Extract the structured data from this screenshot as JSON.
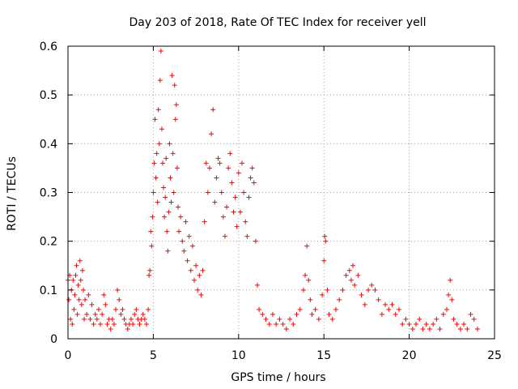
{
  "chart_data": {
    "type": "scatter",
    "title": "Day 203 of 2018, Rate Of TEC Index for receiver yell",
    "xlabel": "GPS time / hours",
    "ylabel": "ROTI / TECUs",
    "xlim": [
      0,
      25
    ],
    "ylim": [
      0,
      0.6
    ],
    "xticks": [
      "0",
      "5",
      "10",
      "15",
      "20",
      "25"
    ],
    "yticks": [
      "0",
      "0.1",
      "0.2",
      "0.3",
      "0.4",
      "0.5",
      "0.6"
    ],
    "grid": true,
    "marker": "+",
    "color": "#ff0000",
    "series": [
      {
        "name": "ROTI",
        "points": [
          [
            0.0,
            0.12
          ],
          [
            0.05,
            0.08
          ],
          [
            0.1,
            0.13
          ],
          [
            0.15,
            0.04
          ],
          [
            0.2,
            0.1
          ],
          [
            0.25,
            0.03
          ],
          [
            0.3,
            0.12
          ],
          [
            0.35,
            0.06
          ],
          [
            0.4,
            0.09
          ],
          [
            0.45,
            0.13
          ],
          [
            0.5,
            0.15
          ],
          [
            0.55,
            0.05
          ],
          [
            0.6,
            0.11
          ],
          [
            0.65,
            0.08
          ],
          [
            0.7,
            0.16
          ],
          [
            0.75,
            0.12
          ],
          [
            0.8,
            0.07
          ],
          [
            0.85,
            0.14
          ],
          [
            0.9,
            0.1
          ],
          [
            0.95,
            0.04
          ],
          [
            1.0,
            0.08
          ],
          [
            1.1,
            0.05
          ],
          [
            1.2,
            0.09
          ],
          [
            1.3,
            0.04
          ],
          [
            1.4,
            0.07
          ],
          [
            1.5,
            0.03
          ],
          [
            1.6,
            0.05
          ],
          [
            1.7,
            0.04
          ],
          [
            1.8,
            0.06
          ],
          [
            1.9,
            0.03
          ],
          [
            2.0,
            0.05
          ],
          [
            2.1,
            0.09
          ],
          [
            2.2,
            0.07
          ],
          [
            2.3,
            0.03
          ],
          [
            2.4,
            0.04
          ],
          [
            2.5,
            0.02
          ],
          [
            2.6,
            0.04
          ],
          [
            2.7,
            0.03
          ],
          [
            2.8,
            0.06
          ],
          [
            2.9,
            0.1
          ],
          [
            3.0,
            0.08
          ],
          [
            3.1,
            0.05
          ],
          [
            3.2,
            0.06
          ],
          [
            3.3,
            0.04
          ],
          [
            3.4,
            0.03
          ],
          [
            3.5,
            0.02
          ],
          [
            3.6,
            0.03
          ],
          [
            3.7,
            0.04
          ],
          [
            3.8,
            0.03
          ],
          [
            3.9,
            0.05
          ],
          [
            4.0,
            0.06
          ],
          [
            4.1,
            0.04
          ],
          [
            4.2,
            0.03
          ],
          [
            4.3,
            0.04
          ],
          [
            4.4,
            0.05
          ],
          [
            4.5,
            0.04
          ],
          [
            4.6,
            0.03
          ],
          [
            4.7,
            0.06
          ],
          [
            4.75,
            0.13
          ],
          [
            4.8,
            0.14
          ],
          [
            4.85,
            0.22
          ],
          [
            4.9,
            0.19
          ],
          [
            4.95,
            0.25
          ],
          [
            5.0,
            0.3
          ],
          [
            5.05,
            0.36
          ],
          [
            5.1,
            0.45
          ],
          [
            5.15,
            0.33
          ],
          [
            5.2,
            0.38
          ],
          [
            5.25,
            0.28
          ],
          [
            5.3,
            0.47
          ],
          [
            5.35,
            0.4
          ],
          [
            5.4,
            0.53
          ],
          [
            5.45,
            0.59
          ],
          [
            5.5,
            0.43
          ],
          [
            5.55,
            0.36
          ],
          [
            5.6,
            0.31
          ],
          [
            5.65,
            0.25
          ],
          [
            5.7,
            0.29
          ],
          [
            5.75,
            0.37
          ],
          [
            5.8,
            0.22
          ],
          [
            5.85,
            0.18
          ],
          [
            5.9,
            0.26
          ],
          [
            5.95,
            0.4
          ],
          [
            6.0,
            0.33
          ],
          [
            6.05,
            0.28
          ],
          [
            6.1,
            0.54
          ],
          [
            6.15,
            0.38
          ],
          [
            6.2,
            0.3
          ],
          [
            6.25,
            0.52
          ],
          [
            6.3,
            0.45
          ],
          [
            6.35,
            0.48
          ],
          [
            6.4,
            0.35
          ],
          [
            6.45,
            0.27
          ],
          [
            6.5,
            0.22
          ],
          [
            6.6,
            0.25
          ],
          [
            6.7,
            0.2
          ],
          [
            6.8,
            0.18
          ],
          [
            6.9,
            0.24
          ],
          [
            7.0,
            0.16
          ],
          [
            7.1,
            0.21
          ],
          [
            7.2,
            0.14
          ],
          [
            7.3,
            0.19
          ],
          [
            7.4,
            0.12
          ],
          [
            7.5,
            0.15
          ],
          [
            7.6,
            0.1
          ],
          [
            7.7,
            0.13
          ],
          [
            7.8,
            0.09
          ],
          [
            7.9,
            0.14
          ],
          [
            8.0,
            0.24
          ],
          [
            8.1,
            0.36
          ],
          [
            8.2,
            0.3
          ],
          [
            8.3,
            0.35
          ],
          [
            8.4,
            0.42
          ],
          [
            8.5,
            0.47
          ],
          [
            8.6,
            0.28
          ],
          [
            8.7,
            0.33
          ],
          [
            8.8,
            0.37
          ],
          [
            8.9,
            0.36
          ],
          [
            9.0,
            0.3
          ],
          [
            9.1,
            0.25
          ],
          [
            9.2,
            0.21
          ],
          [
            9.3,
            0.27
          ],
          [
            9.4,
            0.35
          ],
          [
            9.5,
            0.38
          ],
          [
            9.6,
            0.32
          ],
          [
            9.7,
            0.26
          ],
          [
            9.8,
            0.29
          ],
          [
            9.9,
            0.23
          ],
          [
            10.0,
            0.34
          ],
          [
            10.1,
            0.26
          ],
          [
            10.2,
            0.36
          ],
          [
            10.3,
            0.3
          ],
          [
            10.4,
            0.24
          ],
          [
            10.5,
            0.21
          ],
          [
            10.6,
            0.29
          ],
          [
            10.7,
            0.33
          ],
          [
            10.8,
            0.35
          ],
          [
            10.9,
            0.32
          ],
          [
            11.0,
            0.2
          ],
          [
            11.1,
            0.11
          ],
          [
            11.2,
            0.06
          ],
          [
            11.4,
            0.05
          ],
          [
            11.6,
            0.04
          ],
          [
            11.8,
            0.03
          ],
          [
            12.0,
            0.05
          ],
          [
            12.2,
            0.03
          ],
          [
            12.4,
            0.04
          ],
          [
            12.6,
            0.03
          ],
          [
            12.8,
            0.02
          ],
          [
            13.0,
            0.04
          ],
          [
            13.2,
            0.03
          ],
          [
            13.4,
            0.05
          ],
          [
            13.6,
            0.06
          ],
          [
            13.8,
            0.1
          ],
          [
            13.9,
            0.13
          ],
          [
            14.0,
            0.19
          ],
          [
            14.1,
            0.12
          ],
          [
            14.2,
            0.08
          ],
          [
            14.3,
            0.05
          ],
          [
            14.5,
            0.06
          ],
          [
            14.7,
            0.04
          ],
          [
            14.9,
            0.09
          ],
          [
            15.0,
            0.16
          ],
          [
            15.05,
            0.21
          ],
          [
            15.1,
            0.2
          ],
          [
            15.2,
            0.1
          ],
          [
            15.3,
            0.05
          ],
          [
            15.5,
            0.04
          ],
          [
            15.7,
            0.06
          ],
          [
            15.9,
            0.08
          ],
          [
            16.1,
            0.1
          ],
          [
            16.3,
            0.13
          ],
          [
            16.5,
            0.14
          ],
          [
            16.6,
            0.12
          ],
          [
            16.7,
            0.15
          ],
          [
            16.8,
            0.11
          ],
          [
            17.0,
            0.13
          ],
          [
            17.2,
            0.09
          ],
          [
            17.4,
            0.07
          ],
          [
            17.6,
            0.1
          ],
          [
            17.8,
            0.11
          ],
          [
            18.0,
            0.1
          ],
          [
            18.2,
            0.08
          ],
          [
            18.4,
            0.05
          ],
          [
            18.6,
            0.07
          ],
          [
            18.8,
            0.06
          ],
          [
            19.0,
            0.07
          ],
          [
            19.2,
            0.05
          ],
          [
            19.4,
            0.06
          ],
          [
            19.6,
            0.03
          ],
          [
            19.8,
            0.04
          ],
          [
            20.0,
            0.03
          ],
          [
            20.2,
            0.02
          ],
          [
            20.4,
            0.03
          ],
          [
            20.6,
            0.04
          ],
          [
            20.8,
            0.02
          ],
          [
            21.0,
            0.03
          ],
          [
            21.2,
            0.02
          ],
          [
            21.4,
            0.03
          ],
          [
            21.6,
            0.04
          ],
          [
            21.8,
            0.02
          ],
          [
            22.0,
            0.05
          ],
          [
            22.2,
            0.06
          ],
          [
            22.3,
            0.09
          ],
          [
            22.4,
            0.12
          ],
          [
            22.5,
            0.08
          ],
          [
            22.6,
            0.04
          ],
          [
            22.8,
            0.03
          ],
          [
            23.0,
            0.02
          ],
          [
            23.2,
            0.03
          ],
          [
            23.4,
            0.02
          ],
          [
            23.6,
            0.05
          ],
          [
            23.8,
            0.04
          ],
          [
            24.0,
            0.02
          ]
        ]
      }
    ]
  }
}
